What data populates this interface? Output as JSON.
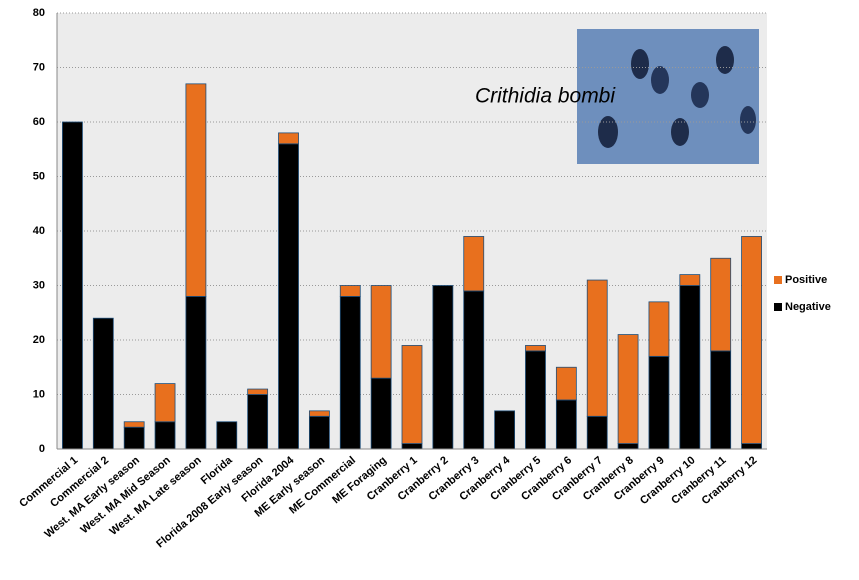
{
  "chart_data": {
    "type": "stacked-bar",
    "annotation": "Crithidia bombi",
    "categories": [
      "Commercial 1",
      "Commercial 2",
      "West. MA Early season",
      "West. MA Mid Season",
      "West. MA Late season",
      "Florida",
      "Florida 2008 Early season",
      "Florida 2004",
      "ME Early season",
      "ME Commercial",
      "ME Foraging",
      "Cranberry 1",
      "Cranberry 2",
      "Cranberry 3",
      "Cranberry 4",
      "Cranberry 5",
      "Cranberry 6",
      "Cranberry 7",
      "Cranberry 8",
      "Cranberry 9",
      "Cranberry 10",
      "Cranberry 11",
      "Cranberry 12"
    ],
    "series": [
      {
        "name": "Negative",
        "color": "#000000",
        "values": [
          60,
          24,
          4,
          5,
          28,
          5,
          10,
          56,
          6,
          28,
          13,
          1,
          30,
          29,
          7,
          18,
          9,
          6,
          1,
          17,
          30,
          18,
          1
        ]
      },
      {
        "name": "Positive",
        "color": "#e8701e",
        "values": [
          0,
          0,
          1,
          7,
          39,
          0,
          1,
          2,
          1,
          2,
          17,
          18,
          0,
          10,
          0,
          1,
          6,
          25,
          20,
          10,
          2,
          17,
          38
        ]
      }
    ],
    "ylim": [
      0,
      80
    ],
    "yticks": [
      0,
      10,
      20,
      30,
      40,
      50,
      60,
      70,
      80
    ],
    "grid": true,
    "legend": "right"
  }
}
